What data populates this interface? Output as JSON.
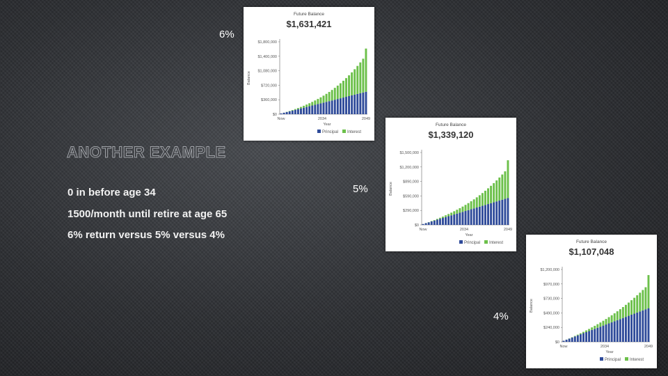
{
  "slide": {
    "title": "ANOTHER EXAMPLE",
    "bullets": [
      "0 in before age 34",
      "1500/month until retire at age 65",
      "6% return versus 5% versus 4%"
    ]
  },
  "colors": {
    "principal": "#2f4b9a",
    "interest": "#6cc04a"
  },
  "chart_data": [
    {
      "type": "bar",
      "label": "6%",
      "title": "Future Balance",
      "subtitle": "$1,631,421",
      "xlabel": "Year",
      "ylabel": "Balance",
      "x_ticks": [
        "Now",
        "2034",
        "2049"
      ],
      "y_ticks": [
        "$0",
        "$360,000",
        "$720,000",
        "$1,080,000",
        "$1,400,000",
        "$1,800,000"
      ],
      "ylim": [
        0,
        1800000
      ],
      "stacked": true,
      "legend": [
        "Principal",
        "Interest"
      ],
      "series": [
        {
          "name": "Principal",
          "values": [
            18000,
            36000,
            54000,
            72000,
            90000,
            108000,
            126000,
            144000,
            162000,
            180000,
            198000,
            216000,
            234000,
            252000,
            270000,
            288000,
            306000,
            324000,
            342000,
            360000,
            378000,
            396000,
            414000,
            432000,
            450000,
            468000,
            486000,
            504000,
            522000,
            540000,
            558000
          ]
        },
        {
          "name": "Interest",
          "values": [
            530,
            2100,
            4800,
            8600,
            13600,
            20000,
            27700,
            36900,
            47600,
            59900,
            73900,
            89700,
            107500,
            127200,
            149100,
            173200,
            199800,
            228800,
            260500,
            295000,
            332500,
            373100,
            417200,
            464800,
            516200,
            571700,
            631400,
            695700,
            764900,
            839300,
            1073421
          ]
        }
      ]
    },
    {
      "type": "bar",
      "label": "5%",
      "title": "Future Balance",
      "subtitle": "$1,339,120",
      "xlabel": "Year",
      "ylabel": "Balance",
      "x_ticks": [
        "Now",
        "2034",
        "2049"
      ],
      "y_ticks": [
        "$0",
        "$290,000",
        "$590,000",
        "$890,000",
        "$1,200,000",
        "$1,500,000"
      ],
      "ylim": [
        0,
        1500000
      ],
      "stacked": true,
      "legend": [
        "Principal",
        "Interest"
      ],
      "series": [
        {
          "name": "Principal",
          "values": [
            18000,
            36000,
            54000,
            72000,
            90000,
            108000,
            126000,
            144000,
            162000,
            180000,
            198000,
            216000,
            234000,
            252000,
            270000,
            288000,
            306000,
            324000,
            342000,
            360000,
            378000,
            396000,
            414000,
            432000,
            450000,
            468000,
            486000,
            504000,
            522000,
            540000,
            558000
          ]
        },
        {
          "name": "Interest",
          "values": [
            440,
            1700,
            3900,
            7000,
            11000,
            16000,
            21900,
            28800,
            36800,
            45900,
            56100,
            67500,
            80200,
            94300,
            109800,
            126800,
            145300,
            165500,
            187400,
            211100,
            236700,
            264300,
            294000,
            325900,
            360100,
            396700,
            435800,
            477600,
            522200,
            569700,
            781120
          ]
        }
      ]
    },
    {
      "type": "bar",
      "label": "4%",
      "title": "Future Balance",
      "subtitle": "$1,107,048",
      "xlabel": "Year",
      "ylabel": "Balance",
      "x_ticks": [
        "Now",
        "2034",
        "2049"
      ],
      "y_ticks": [
        "$0",
        "$240,000",
        "$490,000",
        "$730,000",
        "$970,000",
        "$1,200,000"
      ],
      "ylim": [
        0,
        1200000
      ],
      "stacked": true,
      "legend": [
        "Principal",
        "Interest"
      ],
      "series": [
        {
          "name": "Principal",
          "values": [
            18000,
            36000,
            54000,
            72000,
            90000,
            108000,
            126000,
            144000,
            162000,
            180000,
            198000,
            216000,
            234000,
            252000,
            270000,
            288000,
            306000,
            324000,
            342000,
            360000,
            378000,
            396000,
            414000,
            432000,
            450000,
            468000,
            486000,
            504000,
            522000,
            540000,
            558000
          ]
        },
        {
          "name": "Interest",
          "values": [
            350,
            1400,
            3100,
            5500,
            8600,
            12400,
            16900,
            22100,
            28000,
            34700,
            42100,
            50300,
            59300,
            69100,
            79800,
            91400,
            103900,
            117300,
            131700,
            147100,
            163600,
            181100,
            199800,
            219600,
            240600,
            262900,
            286500,
            311400,
            337700,
            365500,
            549048
          ]
        }
      ]
    }
  ]
}
